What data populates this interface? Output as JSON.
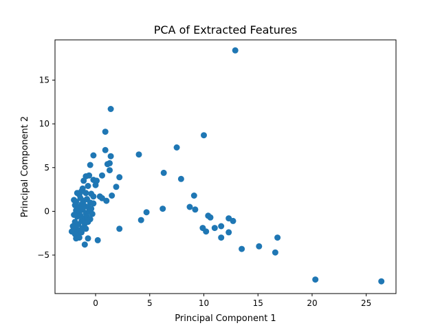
{
  "chart_data": {
    "type": "scatter",
    "title": "PCA of Extracted Features",
    "xlabel": "Principal Component 1",
    "ylabel": "Principal Component 2",
    "xlim": [
      -3.75,
      27.75
    ],
    "ylim": [
      -9.4,
      19.6
    ],
    "xticks": [
      0,
      5,
      10,
      15,
      20,
      25
    ],
    "yticks": [
      -5,
      0,
      5,
      10,
      15
    ],
    "marker_color": "#1f77b4",
    "grid": false,
    "legend": "none",
    "points": [
      [
        12.9,
        18.4
      ],
      [
        1.4,
        11.7
      ],
      [
        0.9,
        9.1
      ],
      [
        10.0,
        8.7
      ],
      [
        7.5,
        7.3
      ],
      [
        0.9,
        7.0
      ],
      [
        -0.2,
        6.4
      ],
      [
        4.0,
        6.5
      ],
      [
        1.4,
        6.3
      ],
      [
        1.1,
        5.4
      ],
      [
        1.3,
        5.5
      ],
      [
        1.3,
        4.7
      ],
      [
        -0.5,
        5.3
      ],
      [
        6.3,
        4.4
      ],
      [
        0.6,
        4.1
      ],
      [
        2.2,
        3.9
      ],
      [
        7.9,
        3.7
      ],
      [
        -0.6,
        4.1
      ],
      [
        -0.9,
        4.0
      ],
      [
        -0.2,
        3.6
      ],
      [
        0.1,
        3.5
      ],
      [
        -1.1,
        3.5
      ],
      [
        0.0,
        3.0
      ],
      [
        1.9,
        2.8
      ],
      [
        -0.7,
        2.9
      ],
      [
        -1.2,
        2.6
      ],
      [
        9.1,
        1.8
      ],
      [
        1.5,
        1.8
      ],
      [
        0.4,
        1.7
      ],
      [
        0.6,
        1.5
      ],
      [
        1.0,
        1.2
      ],
      [
        -1.7,
        2.1
      ],
      [
        -1.3,
        2.3
      ],
      [
        -1.5,
        1.9
      ],
      [
        -0.9,
        2.1
      ],
      [
        -0.4,
        2.0
      ],
      [
        -0.2,
        1.7
      ],
      [
        -2.0,
        1.3
      ],
      [
        -1.8,
        1.1
      ],
      [
        -1.4,
        1.5
      ],
      [
        -1.1,
        1.2
      ],
      [
        -0.8,
        1.4
      ],
      [
        -0.5,
        1.0
      ],
      [
        -0.2,
        0.9
      ],
      [
        -1.9,
        0.7
      ],
      [
        -1.6,
        0.5
      ],
      [
        -1.3,
        0.8
      ],
      [
        -1.0,
        0.6
      ],
      [
        -0.7,
        0.5
      ],
      [
        -0.4,
        0.3
      ],
      [
        -1.8,
        0.1
      ],
      [
        -1.5,
        -0.1
      ],
      [
        -1.2,
        0.2
      ],
      [
        -0.9,
        -0.2
      ],
      [
        -0.6,
        0.0
      ],
      [
        -0.3,
        -0.3
      ],
      [
        -2.0,
        -0.4
      ],
      [
        -1.7,
        -0.6
      ],
      [
        -1.4,
        -0.5
      ],
      [
        -1.1,
        -0.8
      ],
      [
        -0.8,
        -0.6
      ],
      [
        -0.5,
        -0.9
      ],
      [
        -1.9,
        -1.2
      ],
      [
        -1.6,
        -1.5
      ],
      [
        -1.3,
        -1.1
      ],
      [
        -1.0,
        -1.4
      ],
      [
        -0.7,
        -1.2
      ],
      [
        -2.1,
        -1.7
      ],
      [
        -1.8,
        -2.0
      ],
      [
        -1.5,
        -2.2
      ],
      [
        -1.2,
        -1.9
      ],
      [
        -0.9,
        -2.0
      ],
      [
        -2.2,
        -2.3
      ],
      [
        -1.9,
        -2.6
      ],
      [
        -1.6,
        -2.8
      ],
      [
        -1.3,
        -2.4
      ],
      [
        -1.8,
        -3.1
      ],
      [
        -1.5,
        -3.0
      ],
      [
        -0.7,
        -3.1
      ],
      [
        -1.0,
        -3.8
      ],
      [
        0.2,
        -3.3
      ],
      [
        2.2,
        -2.0
      ],
      [
        4.2,
        -1.0
      ],
      [
        4.7,
        -0.1
      ],
      [
        6.2,
        0.3
      ],
      [
        8.7,
        0.5
      ],
      [
        9.2,
        0.2
      ],
      [
        10.4,
        -0.5
      ],
      [
        10.6,
        -0.7
      ],
      [
        9.9,
        -1.9
      ],
      [
        10.2,
        -2.3
      ],
      [
        11.0,
        -1.9
      ],
      [
        11.6,
        -1.7
      ],
      [
        12.3,
        -0.8
      ],
      [
        12.7,
        -1.1
      ],
      [
        12.3,
        -2.4
      ],
      [
        11.6,
        -3.0
      ],
      [
        13.5,
        -4.3
      ],
      [
        15.1,
        -4.0
      ],
      [
        16.8,
        -3.0
      ],
      [
        16.6,
        -4.7
      ],
      [
        20.3,
        -7.8
      ],
      [
        26.4,
        -8.0
      ]
    ]
  }
}
